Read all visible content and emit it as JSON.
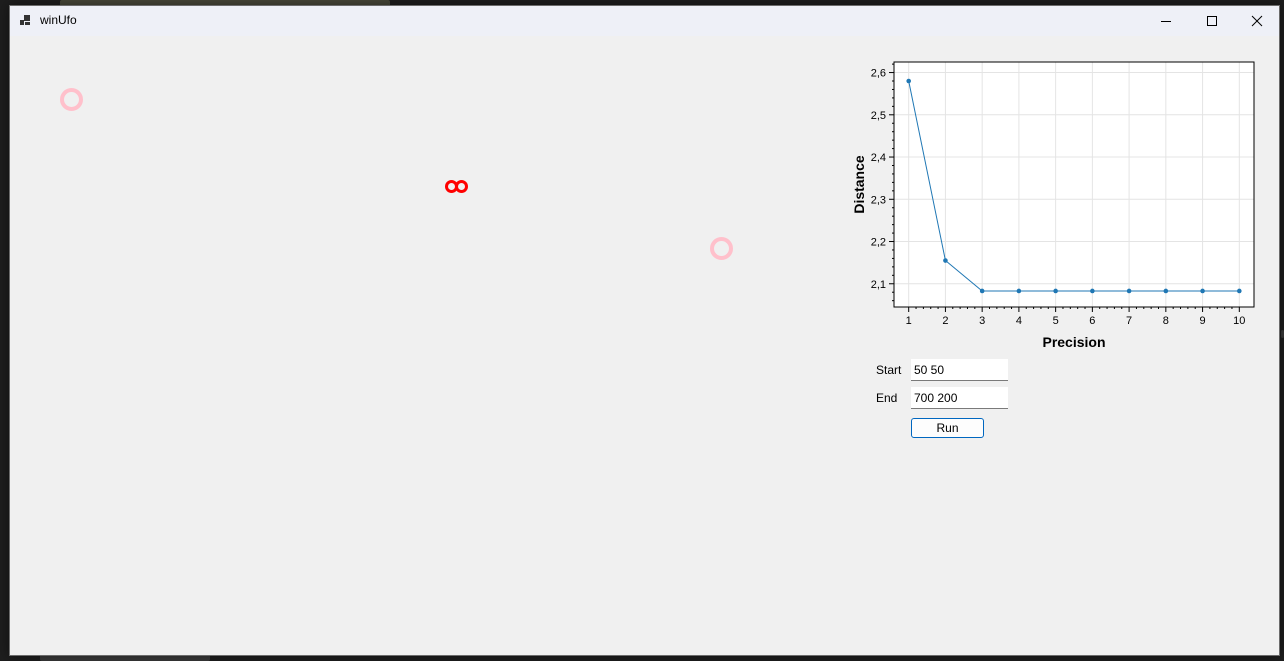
{
  "window": {
    "title": "winUfo"
  },
  "titlebar": {
    "minimize_icon": "minimize-icon",
    "maximize_icon": "maximize-icon",
    "close_icon": "close-icon"
  },
  "canvas": {
    "markers": [
      "start-marker",
      "end-marker",
      "ufo-marker"
    ],
    "colors": {
      "start_end": "#ffc0cb",
      "ufo": "#ff0000"
    }
  },
  "form": {
    "start_label": "Start",
    "start_value": "50 50",
    "end_label": "End",
    "end_value": "700 200",
    "run_label": "Run"
  },
  "chart_data": {
    "type": "line",
    "x": [
      1,
      2,
      3,
      4,
      5,
      6,
      7,
      8,
      9,
      10
    ],
    "series": [
      {
        "values": [
          2.58,
          2.155,
          2.083,
          2.083,
          2.083,
          2.083,
          2.083,
          2.083,
          2.083,
          2.083
        ]
      }
    ],
    "xlabel": "Precision",
    "ylabel": "Distance",
    "xlim": [
      0.6,
      10.4
    ],
    "ylim": [
      2.045,
      2.625
    ],
    "xticks": [
      "1",
      "2",
      "3",
      "4",
      "5",
      "6",
      "7",
      "8",
      "9",
      "10"
    ],
    "yticks": [
      2.1,
      2.2,
      2.3,
      2.4,
      2.5,
      2.6
    ],
    "ytick_labels": [
      "2,1",
      "2,2",
      "2,3",
      "2,4",
      "2,5",
      "2,6"
    ],
    "grid": true,
    "line_color": "#1f77b4"
  }
}
